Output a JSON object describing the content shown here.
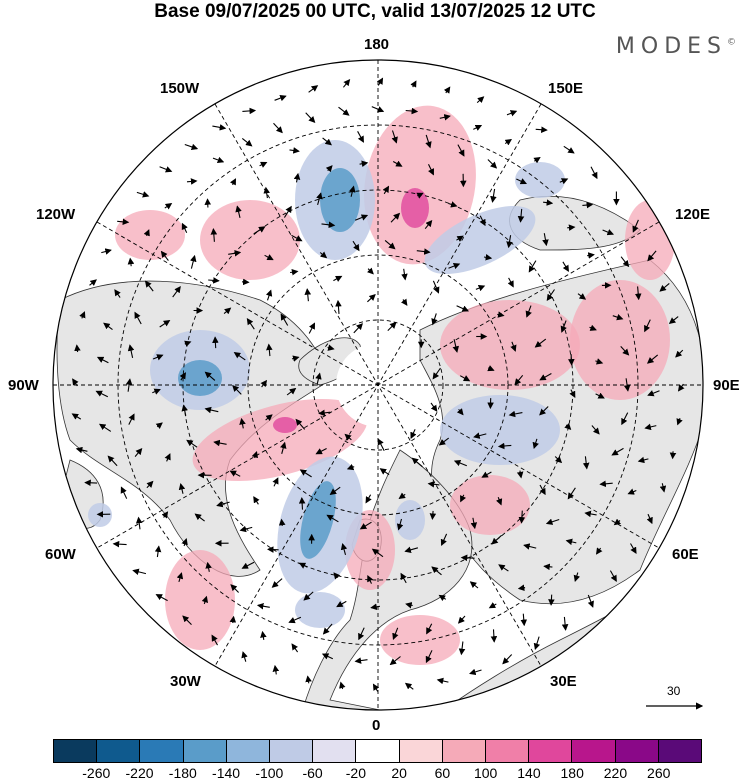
{
  "title": "Base 09/07/2025 00 UTC, valid 13/07/2025 12 UTC",
  "brand": "MODES",
  "brand_mark": "©",
  "longitude_labels": {
    "top": "180",
    "bottom": "0",
    "left": "90W",
    "right": "90E",
    "upper_left": "150W",
    "upper_right": "150E",
    "mid_upper_left": "120W",
    "mid_upper_right": "120E",
    "mid_lower_left": "60W",
    "mid_lower_right": "60E",
    "lower_left": "30W",
    "lower_right": "30E"
  },
  "reference_vector": {
    "label": "30"
  },
  "colorbar": {
    "colors": [
      "#0a3a5e",
      "#0f5a8e",
      "#2a7ab6",
      "#5a9cc9",
      "#8fb6dc",
      "#bfcbe6",
      "#e2e0f0",
      "#ffffff",
      "#fad6d8",
      "#f5aab8",
      "#f07fa8",
      "#e0479c",
      "#b8168c",
      "#8a0888",
      "#5a0a78"
    ],
    "tick_labels": [
      "-260",
      "-220",
      "-180",
      "-140",
      "-100",
      "-60",
      "-20",
      "20",
      "60",
      "100",
      "140",
      "180",
      "220",
      "260"
    ]
  }
}
